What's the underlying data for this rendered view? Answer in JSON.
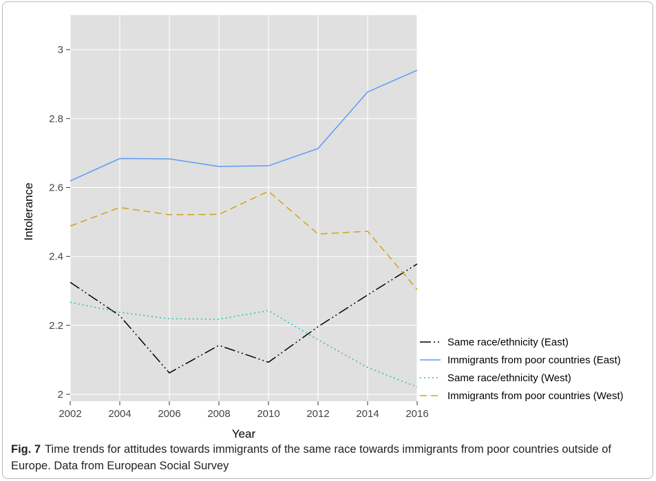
{
  "chart_data": {
    "type": "line",
    "xlabel": "Year",
    "ylabel": "Intolerance",
    "x": [
      2002,
      2004,
      2006,
      2008,
      2010,
      2012,
      2014,
      2016
    ],
    "xlim": [
      2002,
      2016
    ],
    "ylim": [
      1.98,
      3.1
    ],
    "yticks": [
      2,
      2.2,
      2.4,
      2.6,
      2.8,
      3
    ],
    "ytick_labels": [
      "2",
      "2.2",
      "2.4",
      "2.6",
      "2.8",
      "3"
    ],
    "xtick_labels": [
      "2002",
      "2004",
      "2006",
      "2008",
      "2010",
      "2012",
      "2014",
      "2016"
    ],
    "grid": true,
    "legend_position": "bottom-right",
    "series": [
      {
        "name": "Same race/ethnicity (East)",
        "color": "#000000",
        "dash": "longdash-dotdot",
        "values": [
          2.325,
          2.228,
          2.062,
          2.142,
          2.093,
          2.196,
          2.288,
          2.378
        ]
      },
      {
        "name": "Immigrants from poor countries (East)",
        "color": "#5b9bf5",
        "dash": "solid",
        "values": [
          2.619,
          2.684,
          2.683,
          2.661,
          2.663,
          2.713,
          2.877,
          2.94
        ]
      },
      {
        "name": "Same race/ethnicity (West)",
        "color": "#1fbfae",
        "dash": "dotted",
        "values": [
          2.267,
          2.238,
          2.219,
          2.218,
          2.243,
          2.158,
          2.078,
          2.021
        ]
      },
      {
        "name": "Immigrants from poor countries (West)",
        "color": "#d4a017",
        "dash": "dashed",
        "values": [
          2.488,
          2.542,
          2.521,
          2.522,
          2.589,
          2.465,
          2.473,
          2.304
        ]
      }
    ]
  },
  "caption": {
    "label": "Fig. 7",
    "text": "Time trends for attitudes towards immigrants of the same race towards immigrants from poor countries outside of Europe. Data from European Social Survey"
  },
  "style": {
    "panel_background": "#e0e0e0",
    "grid_color": "#ffffff"
  }
}
